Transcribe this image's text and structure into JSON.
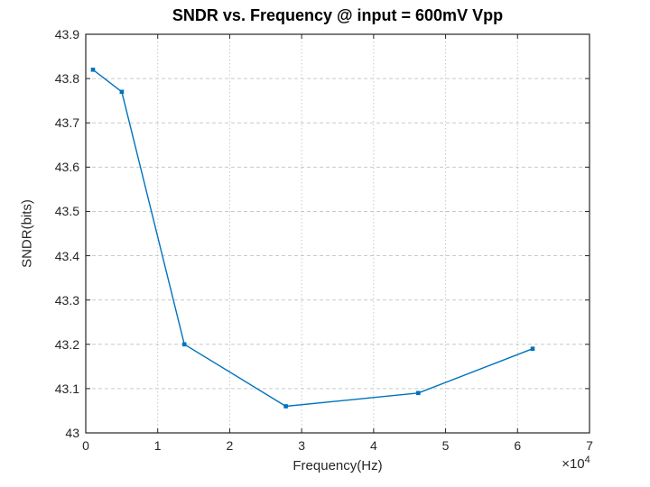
{
  "chart_data": {
    "type": "line",
    "title": "SNDR vs. Frequency @ input = 600mV Vpp",
    "xlabel": "Frequency(Hz)",
    "ylabel": "SNDR(bits)",
    "x_scale": {
      "base": "×10",
      "exp": "4"
    },
    "xlim": [
      0,
      70000
    ],
    "ylim": [
      43.0,
      43.9
    ],
    "xticks": {
      "values": [
        0,
        10000,
        20000,
        30000,
        40000,
        50000,
        60000,
        70000
      ],
      "labels": [
        "0",
        "1",
        "2",
        "3",
        "4",
        "5",
        "6",
        "7"
      ]
    },
    "yticks": {
      "values": [
        43.0,
        43.1,
        43.2,
        43.3,
        43.4,
        43.5,
        43.6,
        43.7,
        43.8,
        43.9
      ],
      "labels": [
        "43",
        "43.1",
        "43.2",
        "43.3",
        "43.4",
        "43.5",
        "43.6",
        "43.7",
        "43.8",
        "43.9"
      ]
    },
    "grid": true,
    "legend": "none",
    "series": [
      {
        "name": "SNDR",
        "color": "#0072BD",
        "marker": "square",
        "x": [
          1000,
          5000,
          13700,
          27800,
          46200,
          62100
        ],
        "y": [
          43.82,
          43.77,
          43.2,
          43.06,
          43.09,
          43.19
        ]
      }
    ],
    "colors": {
      "axis": "#262626",
      "grid": "#c9c9c9",
      "background": "#ffffff",
      "title": "#000000"
    }
  }
}
